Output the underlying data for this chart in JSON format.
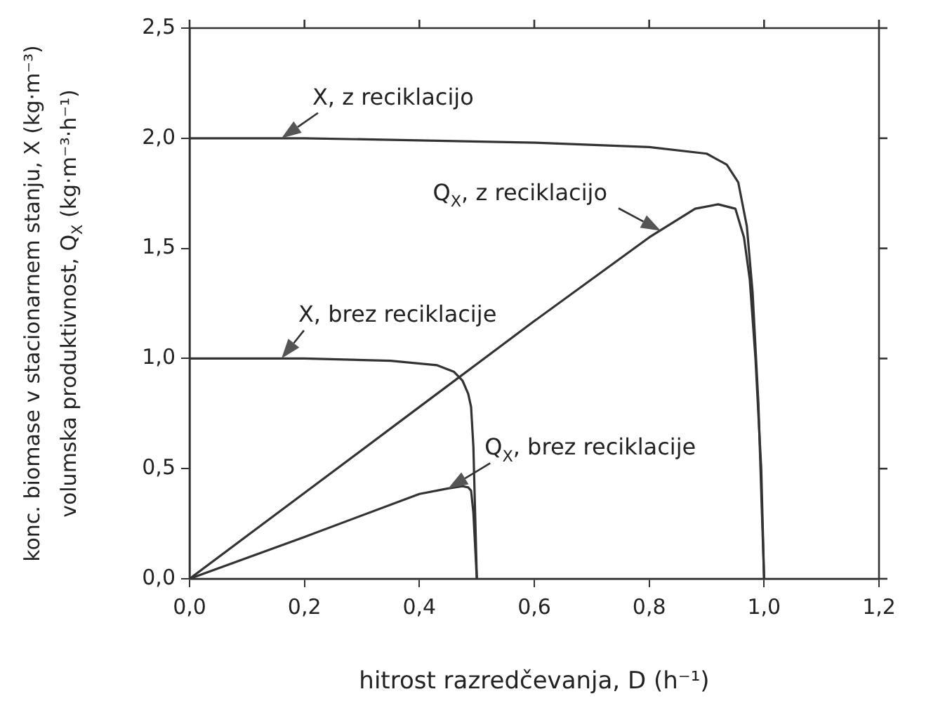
{
  "chart_data": {
    "type": "line",
    "xlabel": "hitrost razredčevanja, D (h⁻¹)",
    "ylabel": "konc. biomase v stacionarnem stanju, X (kg·m⁻³)\nvolumska produktivnost, Q$_{X}$ (kg·m⁻³·h⁻¹)",
    "xlim": [
      0,
      1.2
    ],
    "xticks": [
      {
        "value": 0,
        "label": "0,0"
      },
      {
        "value": 0.2,
        "label": "0,2"
      },
      {
        "value": 0.4,
        "label": "0,4"
      },
      {
        "value": 0.6,
        "label": "0,6"
      },
      {
        "value": 0.8,
        "label": "0,8"
      },
      {
        "value": 1,
        "label": "1,0"
      },
      {
        "value": 1.2,
        "label": "1,2"
      }
    ],
    "ylim": [
      0,
      2.5
    ],
    "yticks": [
      {
        "value": 0,
        "label": "0,0"
      },
      {
        "value": 0.5,
        "label": "0,5"
      },
      {
        "value": 1,
        "label": "1,0"
      },
      {
        "value": 1.5,
        "label": "1,5"
      },
      {
        "value": 2,
        "label": "2,0"
      },
      {
        "value": 2.5,
        "label": "2,5"
      }
    ],
    "grid": false,
    "legend": false,
    "marker": "none",
    "line_style": "solid",
    "series": [
      {
        "color": "#333333",
        "x": [
          0,
          0.2,
          0.4,
          0.6,
          0.8,
          0.9,
          0.935,
          0.955,
          0.97,
          0.98,
          0.99,
          1.0
        ],
        "values": [
          2.0,
          2.0,
          1.99,
          1.98,
          1.96,
          1.93,
          1.88,
          1.8,
          1.6,
          1.3,
          0.8,
          0
        ]
      },
      {
        "color": "#333333",
        "x": [
          0,
          0.2,
          0.4,
          0.6,
          0.8,
          0.88,
          0.92,
          0.95,
          0.965,
          0.975,
          0.985,
          0.995,
          1.0
        ],
        "values": [
          0,
          0.39,
          0.78,
          1.17,
          1.55,
          1.68,
          1.7,
          1.68,
          1.55,
          1.36,
          1.0,
          0.5,
          0
        ]
      },
      {
        "color": "#333333",
        "x": [
          0,
          0.2,
          0.35,
          0.43,
          0.46,
          0.475,
          0.485,
          0.49,
          0.494,
          0.497,
          0.5
        ],
        "values": [
          1.0,
          1.0,
          0.99,
          0.97,
          0.94,
          0.9,
          0.84,
          0.78,
          0.6,
          0.3,
          0
        ]
      },
      {
        "color": "#333333",
        "x": [
          0,
          0.2,
          0.4,
          0.45,
          0.475,
          0.485,
          0.49,
          0.494,
          0.497,
          0.5
        ],
        "values": [
          0,
          0.19,
          0.385,
          0.41,
          0.42,
          0.415,
          0.4,
          0.3,
          0.15,
          0
        ]
      }
    ],
    "annotations": [
      {
        "text": "X, z reciklacijo",
        "x": 0.16,
        "y": 2.0
      },
      {
        "text": "X, brez reciklacije",
        "x": 0.16,
        "y": 1.0
      },
      {
        "text": "Q$_{X}$, z reciklacijo",
        "x": 0.82,
        "y": 1.58
      },
      {
        "text": "Q$_{X}$, brez reciklacije",
        "x": 0.45,
        "y": 0.41
      }
    ]
  }
}
